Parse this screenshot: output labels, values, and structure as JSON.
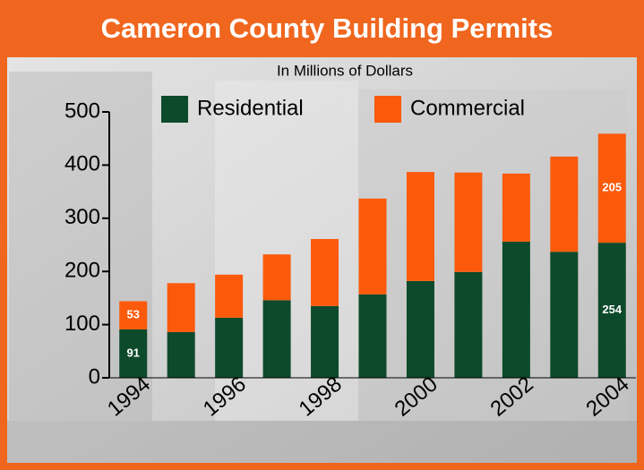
{
  "chart_data": {
    "type": "stacked_bar",
    "title": "Cameron County Building Permits",
    "subtitle": "In Millions of Dollars",
    "categories": [
      "1994",
      null,
      "1996",
      null,
      "1998",
      null,
      "2000",
      null,
      "2002",
      null,
      "2004"
    ],
    "series": [
      {
        "name": "Residential",
        "color": "#0d4a2b",
        "values": [
          91,
          86,
          113,
          146,
          135,
          157,
          182,
          199,
          256,
          237,
          254
        ],
        "value_labels": [
          "91",
          null,
          null,
          null,
          null,
          null,
          null,
          null,
          null,
          null,
          "254"
        ]
      },
      {
        "name": "Commercial",
        "color": "#fb5a0c",
        "values": [
          53,
          92,
          81,
          86,
          126,
          180,
          205,
          187,
          128,
          179,
          205
        ],
        "value_labels": [
          "53",
          null,
          null,
          null,
          null,
          null,
          null,
          null,
          null,
          null,
          "205"
        ]
      }
    ],
    "ylim": [
      0,
      500
    ],
    "yticks": [
      0,
      100,
      200,
      300,
      400,
      500
    ]
  }
}
